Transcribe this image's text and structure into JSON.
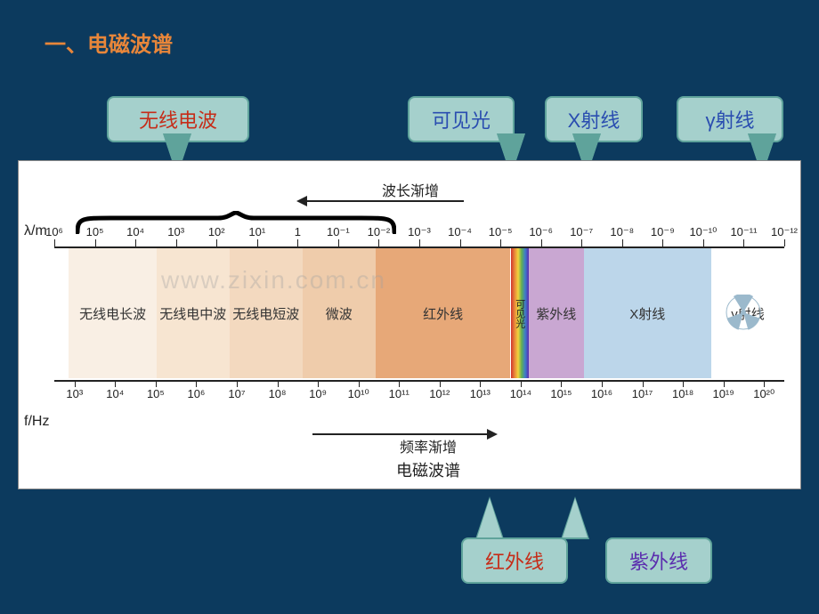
{
  "title": "一、电磁波谱",
  "callouts": {
    "radio": {
      "text": "无线电波",
      "color_class": "label-red"
    },
    "visible": {
      "text": "可见光",
      "color_class": "label-blue"
    },
    "xray": {
      "text": "X射线",
      "color_class": "label-blue"
    },
    "gamma": {
      "text": "γ射线",
      "color_class": "label-blue"
    },
    "ir": {
      "text": "红外线",
      "color_class": "label-red"
    },
    "uv": {
      "text": "紫外线",
      "color_class": "label-purple"
    }
  },
  "callout_style": {
    "fill": "#a5d0cc",
    "border": "#5fa39b",
    "border_radius": 8,
    "fontsize": 22
  },
  "chart": {
    "wavelength_label": "波长渐增",
    "frequency_label": "频率渐增",
    "title": "电磁波谱",
    "axis_lambda": "λ/m",
    "axis_freq": "f/Hz",
    "watermark": "www.zixin.com.cn",
    "background": "#ffffff",
    "axis_color": "#222222",
    "text_color": "#222222",
    "lambda_ticks": [
      "10⁶",
      "10⁵",
      "10⁴",
      "10³",
      "10²",
      "10¹",
      "1",
      "10⁻¹",
      "10⁻²",
      "10⁻³",
      "10⁻⁴",
      "10⁻⁵",
      "10⁻⁶",
      "10⁻⁷",
      "10⁻⁸",
      "10⁻⁹",
      "10⁻¹⁰",
      "10⁻¹¹",
      "10⁻¹²"
    ],
    "freq_ticks": [
      "10³",
      "10⁴",
      "10⁵",
      "10⁶",
      "10⁷",
      "10⁸",
      "10⁹",
      "10¹⁰",
      "10¹¹",
      "10¹²",
      "10¹³",
      "10¹⁴",
      "10¹⁵",
      "10¹⁶",
      "10¹⁷",
      "10¹⁸",
      "10¹⁹",
      "10²⁰"
    ],
    "bands": [
      {
        "label": "无线电长波",
        "start_pct": 2.0,
        "end_pct": 14.0,
        "color": "#f9efe4"
      },
      {
        "label": "无线电中波",
        "start_pct": 14.0,
        "end_pct": 24.0,
        "color": "#f7e5d1"
      },
      {
        "label": "无线电短波",
        "start_pct": 24.0,
        "end_pct": 34.0,
        "color": "#f3d9bf"
      },
      {
        "label": "微波",
        "start_pct": 34.0,
        "end_pct": 44.0,
        "color": "#efccab"
      },
      {
        "label": "红外线",
        "start_pct": 44.0,
        "end_pct": 62.5,
        "color": "#e7a878"
      },
      {
        "label": "可见光",
        "start_pct": 62.5,
        "end_pct": 65.0,
        "color": "visible"
      },
      {
        "label": "紫外线",
        "start_pct": 65.0,
        "end_pct": 72.5,
        "color": "#c9a7d2"
      },
      {
        "label": "X射线",
        "start_pct": 72.5,
        "end_pct": 90.0,
        "color": "#bcd6ea"
      },
      {
        "label": "γ射线",
        "start_pct": 90.0,
        "end_pct": 100.0,
        "color": "#ffffff"
      }
    ],
    "visible_colors": [
      "#d0342c",
      "#e8863a",
      "#f2d23c",
      "#5eae54",
      "#3d7dca",
      "#5b2dae"
    ],
    "brace": {
      "left_pct": 3,
      "right_pct": 46
    },
    "radiation_icon_color": "#9bb9cc"
  },
  "page_bg": "#0c3a5e"
}
